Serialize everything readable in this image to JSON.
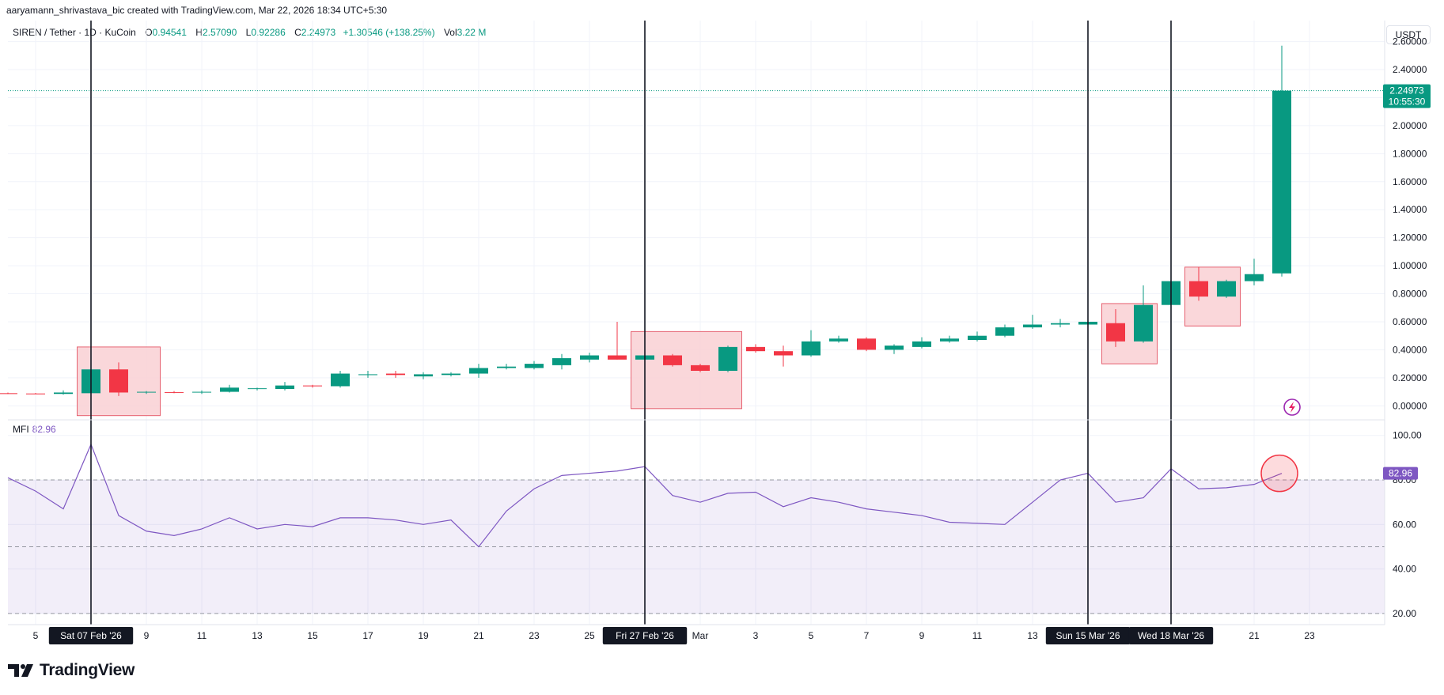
{
  "caption": "aaryamann_shrivastava_bic created with TradingView.com, Mar 22, 2026 18:34 UTC+5:30",
  "legend": {
    "symbol": "SIREN / Tether · 1D · KuCoin",
    "open_label": "O",
    "open": "0.94541",
    "high_label": "H",
    "high": "2.57090",
    "low_label": "L",
    "low": "0.92286",
    "close_label": "C",
    "close": "2.24973",
    "change": "+1.30546 (+138.25%)",
    "vol_label": "Vol",
    "vol": "3.22 M"
  },
  "currency_button": "USDT",
  "price_badge": {
    "price": "2.24973",
    "countdown": "10:55:30"
  },
  "mfi_legend": {
    "label": "MFI",
    "value": "82.96"
  },
  "mfi_badge": "82.96",
  "footer": {
    "brand": "TradingView",
    "logo": "tradingview-logo-icon"
  },
  "colors": {
    "up": "#089981",
    "down": "#f23645",
    "mfi": "#7e57c2",
    "highlight_fill": "#f9d0d4",
    "highlight_stroke": "#e66170"
  },
  "chart_data": [
    {
      "type": "candlestick",
      "title": "SIREN / Tether · 1D · KuCoin",
      "y_axis_ticks": [
        "0.00000",
        "0.20000",
        "0.40000",
        "0.60000",
        "0.80000",
        "1.00000",
        "1.20000",
        "1.40000",
        "1.60000",
        "1.80000",
        "2.00000",
        "2.20000",
        "2.40000",
        "2.60000"
      ],
      "ylim": [
        -0.1,
        2.75
      ],
      "x_axis_ticks": [
        {
          "i": 1,
          "label": "5"
        },
        {
          "i": 5,
          "label": "9"
        },
        {
          "i": 7,
          "label": "11"
        },
        {
          "i": 9,
          "label": "13"
        },
        {
          "i": 11,
          "label": "15"
        },
        {
          "i": 13,
          "label": "17"
        },
        {
          "i": 15,
          "label": "19"
        },
        {
          "i": 17,
          "label": "21"
        },
        {
          "i": 19,
          "label": "23"
        },
        {
          "i": 21,
          "label": "25"
        },
        {
          "i": 25,
          "label": "Mar"
        },
        {
          "i": 27,
          "label": "3"
        },
        {
          "i": 29,
          "label": "5"
        },
        {
          "i": 31,
          "label": "7"
        },
        {
          "i": 33,
          "label": "9"
        },
        {
          "i": 35,
          "label": "11"
        },
        {
          "i": 37,
          "label": "13"
        },
        {
          "i": 45,
          "label": "21"
        },
        {
          "i": 47,
          "label": "23"
        }
      ],
      "marked_dates": [
        {
          "i": 3,
          "label": "Sat 07 Feb '26"
        },
        {
          "i": 23,
          "label": "Fri 27 Feb '26"
        },
        {
          "i": 39,
          "label": "Sun 15 Mar '26"
        },
        {
          "i": 42,
          "label": "Wed 18 Mar '26"
        }
      ],
      "candles": [
        {
          "o": 0.09,
          "h": 0.095,
          "l": 0.085,
          "c": 0.088
        },
        {
          "o": 0.088,
          "h": 0.092,
          "l": 0.084,
          "c": 0.086
        },
        {
          "o": 0.085,
          "h": 0.11,
          "l": 0.08,
          "c": 0.095
        },
        {
          "o": 0.09,
          "h": 0.28,
          "l": 0.08,
          "c": 0.26
        },
        {
          "o": 0.26,
          "h": 0.31,
          "l": 0.07,
          "c": 0.095
        },
        {
          "o": 0.095,
          "h": 0.105,
          "l": 0.085,
          "c": 0.1
        },
        {
          "o": 0.098,
          "h": 0.105,
          "l": 0.09,
          "c": 0.096
        },
        {
          "o": 0.095,
          "h": 0.11,
          "l": 0.085,
          "c": 0.1
        },
        {
          "o": 0.1,
          "h": 0.15,
          "l": 0.095,
          "c": 0.13
        },
        {
          "o": 0.12,
          "h": 0.13,
          "l": 0.11,
          "c": 0.125
        },
        {
          "o": 0.12,
          "h": 0.17,
          "l": 0.11,
          "c": 0.145
        },
        {
          "o": 0.145,
          "h": 0.15,
          "l": 0.13,
          "c": 0.14
        },
        {
          "o": 0.14,
          "h": 0.25,
          "l": 0.13,
          "c": 0.23
        },
        {
          "o": 0.22,
          "h": 0.25,
          "l": 0.2,
          "c": 0.225
        },
        {
          "o": 0.23,
          "h": 0.25,
          "l": 0.2,
          "c": 0.22
        },
        {
          "o": 0.21,
          "h": 0.24,
          "l": 0.19,
          "c": 0.225
        },
        {
          "o": 0.22,
          "h": 0.24,
          "l": 0.21,
          "c": 0.23
        },
        {
          "o": 0.23,
          "h": 0.3,
          "l": 0.2,
          "c": 0.27
        },
        {
          "o": 0.27,
          "h": 0.3,
          "l": 0.26,
          "c": 0.28
        },
        {
          "o": 0.27,
          "h": 0.32,
          "l": 0.26,
          "c": 0.3
        },
        {
          "o": 0.29,
          "h": 0.37,
          "l": 0.26,
          "c": 0.34
        },
        {
          "o": 0.33,
          "h": 0.38,
          "l": 0.31,
          "c": 0.36
        },
        {
          "o": 0.36,
          "h": 0.6,
          "l": 0.33,
          "c": 0.33
        },
        {
          "o": 0.33,
          "h": 0.39,
          "l": 0.31,
          "c": 0.36
        },
        {
          "o": 0.36,
          "h": 0.37,
          "l": 0.28,
          "c": 0.29
        },
        {
          "o": 0.29,
          "h": 0.3,
          "l": 0.24,
          "c": 0.25
        },
        {
          "o": 0.25,
          "h": 0.43,
          "l": 0.24,
          "c": 0.42
        },
        {
          "o": 0.42,
          "h": 0.44,
          "l": 0.38,
          "c": 0.39
        },
        {
          "o": 0.39,
          "h": 0.43,
          "l": 0.28,
          "c": 0.36
        },
        {
          "o": 0.36,
          "h": 0.54,
          "l": 0.35,
          "c": 0.46
        },
        {
          "o": 0.46,
          "h": 0.5,
          "l": 0.45,
          "c": 0.48
        },
        {
          "o": 0.48,
          "h": 0.49,
          "l": 0.39,
          "c": 0.4
        },
        {
          "o": 0.4,
          "h": 0.44,
          "l": 0.37,
          "c": 0.43
        },
        {
          "o": 0.42,
          "h": 0.49,
          "l": 0.41,
          "c": 0.46
        },
        {
          "o": 0.46,
          "h": 0.5,
          "l": 0.45,
          "c": 0.48
        },
        {
          "o": 0.47,
          "h": 0.53,
          "l": 0.46,
          "c": 0.5
        },
        {
          "o": 0.5,
          "h": 0.58,
          "l": 0.49,
          "c": 0.56
        },
        {
          "o": 0.56,
          "h": 0.65,
          "l": 0.55,
          "c": 0.58
        },
        {
          "o": 0.58,
          "h": 0.62,
          "l": 0.56,
          "c": 0.59
        },
        {
          "o": 0.58,
          "h": 0.6,
          "l": 0.57,
          "c": 0.6
        },
        {
          "o": 0.59,
          "h": 0.69,
          "l": 0.42,
          "c": 0.46
        },
        {
          "o": 0.46,
          "h": 0.86,
          "l": 0.45,
          "c": 0.72
        },
        {
          "o": 0.72,
          "h": 0.9,
          "l": 0.7,
          "c": 0.89
        },
        {
          "o": 0.89,
          "h": 0.99,
          "l": 0.75,
          "c": 0.78
        },
        {
          "o": 0.78,
          "h": 0.9,
          "l": 0.77,
          "c": 0.89
        },
        {
          "o": 0.89,
          "h": 1.05,
          "l": 0.86,
          "c": 0.94
        },
        {
          "o": 0.94541,
          "h": 2.5709,
          "l": 0.92286,
          "c": 2.24973
        }
      ],
      "last_price": 2.24973,
      "highlight_boxes": [
        {
          "from": 2.5,
          "to": 5.5,
          "y0": 0.42,
          "y1": -0.07
        },
        {
          "from": 22.5,
          "to": 26.5,
          "y0": 0.53,
          "y1": -0.02
        },
        {
          "from": 39.5,
          "to": 41.5,
          "y0": 0.73,
          "y1": 0.3
        },
        {
          "from": 42.5,
          "to": 44.5,
          "y0": 0.99,
          "y1": 0.57
        }
      ]
    },
    {
      "type": "line",
      "title": "MFI",
      "y_axis_ticks": [
        "20.00",
        "40.00",
        "60.00",
        "80.00",
        "100.00"
      ],
      "ylim": [
        15,
        107
      ],
      "band_upper": 80,
      "band_mid": 50,
      "band_lower": 20,
      "series": [
        {
          "name": "MFI",
          "values": [
            81,
            75,
            67,
            96,
            64,
            57,
            55,
            58,
            63,
            58,
            60,
            59,
            63,
            63,
            62,
            60,
            62,
            50,
            66,
            76,
            82,
            83,
            84,
            86,
            73,
            70,
            74,
            74.5,
            68,
            72,
            70,
            67,
            65.5,
            64,
            61,
            60.5,
            60,
            70,
            80,
            83,
            70,
            72,
            85,
            76,
            76.5,
            78,
            82.96
          ]
        }
      ],
      "last_value": 82.96
    }
  ]
}
